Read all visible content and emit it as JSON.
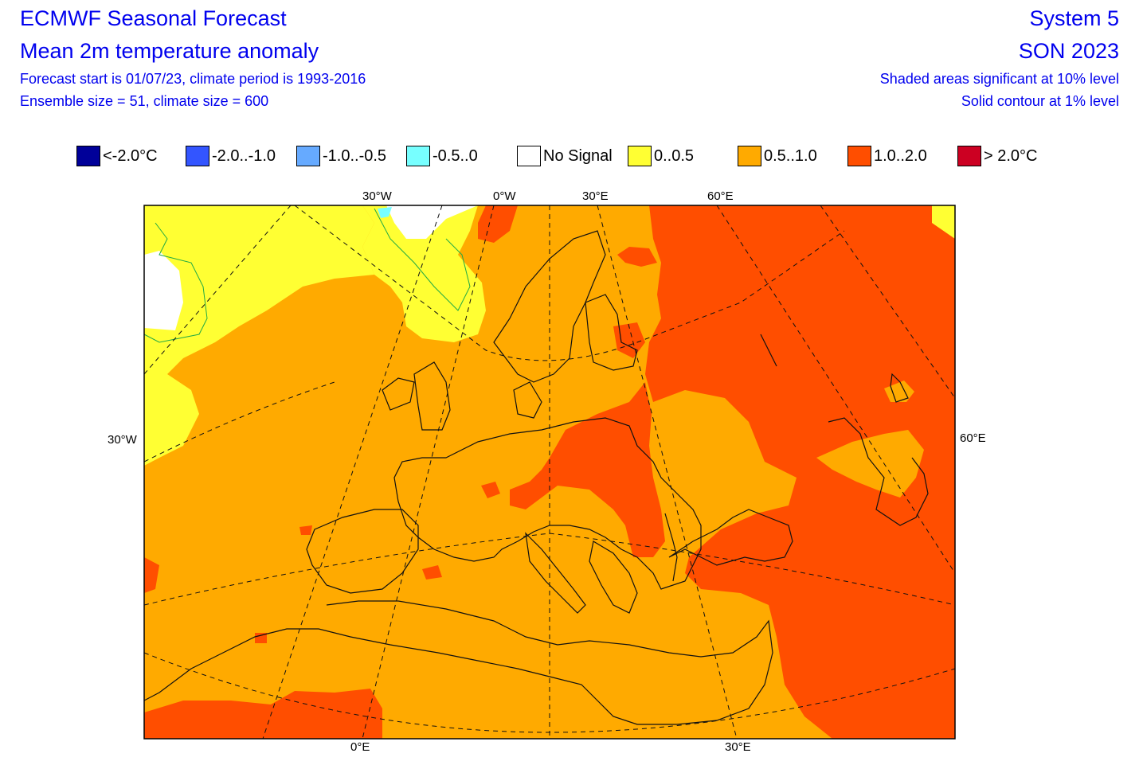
{
  "header": {
    "title": "ECMWF Seasonal Forecast",
    "subtitle": "Mean 2m temperature anomaly",
    "info_line1": "Forecast start is 01/07/23, climate period is 1993-2016",
    "info_line2": "Ensemble size = 51, climate size = 600",
    "system": "System 5",
    "season": "SON 2023",
    "sig_note": "Shaded areas significant at 10% level",
    "contour_note": "Solid contour at 1% level"
  },
  "legend": [
    {
      "label": "<-2.0°C",
      "color": "#000099"
    },
    {
      "label": "-2.0..-1.0",
      "color": "#3355ff"
    },
    {
      "label": "-1.0..-0.5",
      "color": "#66aaff"
    },
    {
      "label": "-0.5..0",
      "color": "#77ffff"
    },
    {
      "label": "No Signal",
      "color": "#ffffff"
    },
    {
      "label": "0..0.5",
      "color": "#ffff33"
    },
    {
      "label": "0.5..1.0",
      "color": "#ffaa00"
    },
    {
      "label": "1.0..2.0",
      "color": "#ff4e00"
    },
    {
      "label": "> 2.0°C",
      "color": "#cc0022"
    }
  ],
  "map": {
    "region": "Europe",
    "background_category": "0.5..1.0",
    "lon_labels_top": [
      "30°W",
      "0°W",
      "30°E",
      "60°E"
    ],
    "lon_labels_bottom": [
      "0°E",
      "30°E"
    ],
    "lat_label_left": "30°W",
    "lat_label_right": "60°E",
    "colors": {
      "no_signal": "#ffffff",
      "low": "#ffff33",
      "mid": "#ffaa00",
      "high": "#ff4e00",
      "coast": "#111111",
      "contour": "#22aa44"
    }
  }
}
